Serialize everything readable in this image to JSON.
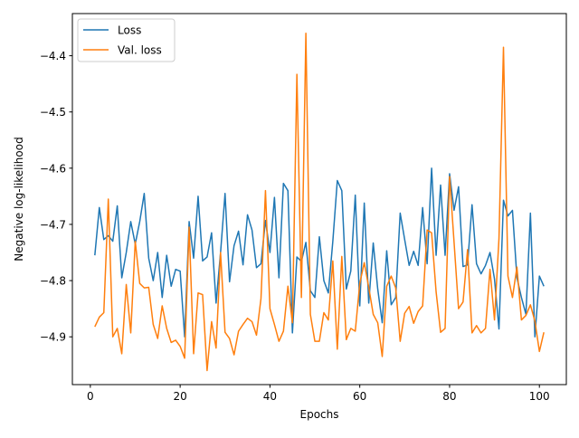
{
  "chart_data": {
    "type": "line",
    "title": "",
    "xlabel": "Epochs",
    "ylabel": "Negative log-likelihood",
    "xlim": [
      -4,
      106
    ],
    "ylim": [
      -4.985,
      -4.325
    ],
    "xticks": [
      0,
      20,
      40,
      60,
      80,
      100
    ],
    "yticks": [
      -4.4,
      -4.5,
      -4.6,
      -4.7,
      -4.8,
      -4.9
    ],
    "grid": false,
    "legend": "top-left",
    "x_start": 1,
    "series": [
      {
        "name": "Loss",
        "color": "#1f77b4",
        "values": [
          -4.755,
          -4.67,
          -4.727,
          -4.72,
          -4.73,
          -4.667,
          -4.795,
          -4.75,
          -4.695,
          -4.735,
          -4.695,
          -4.645,
          -4.76,
          -4.8,
          -4.75,
          -4.83,
          -4.755,
          -4.81,
          -4.78,
          -4.783,
          -4.9,
          -4.695,
          -4.76,
          -4.65,
          -4.765,
          -4.758,
          -4.715,
          -4.84,
          -4.75,
          -4.645,
          -4.802,
          -4.738,
          -4.712,
          -4.772,
          -4.683,
          -4.71,
          -4.777,
          -4.77,
          -4.693,
          -4.75,
          -4.652,
          -4.795,
          -4.627,
          -4.64,
          -4.893,
          -4.758,
          -4.766,
          -4.732,
          -4.818,
          -4.83,
          -4.722,
          -4.8,
          -4.822,
          -4.73,
          -4.622,
          -4.64,
          -4.815,
          -4.783,
          -4.648,
          -4.845,
          -4.662,
          -4.84,
          -4.733,
          -4.815,
          -4.875,
          -4.747,
          -4.843,
          -4.83,
          -4.68,
          -4.727,
          -4.773,
          -4.748,
          -4.773,
          -4.67,
          -4.77,
          -4.6,
          -4.755,
          -4.63,
          -4.755,
          -4.61,
          -4.675,
          -4.633,
          -4.775,
          -4.772,
          -4.665,
          -4.77,
          -4.788,
          -4.773,
          -4.75,
          -4.797,
          -4.886,
          -4.657,
          -4.685,
          -4.675,
          -4.795,
          -4.83,
          -4.86,
          -4.68,
          -4.9,
          -4.792,
          -4.81
        ]
      },
      {
        "name": "Val. loss",
        "color": "#ff7f0e",
        "values": [
          -4.882,
          -4.865,
          -4.857,
          -4.655,
          -4.9,
          -4.885,
          -4.93,
          -4.807,
          -4.893,
          -4.73,
          -4.805,
          -4.813,
          -4.812,
          -4.878,
          -4.903,
          -4.845,
          -4.885,
          -4.91,
          -4.906,
          -4.917,
          -4.938,
          -4.705,
          -4.93,
          -4.822,
          -4.825,
          -4.96,
          -4.873,
          -4.92,
          -4.75,
          -4.892,
          -4.903,
          -4.932,
          -4.89,
          -4.878,
          -4.867,
          -4.873,
          -4.897,
          -4.832,
          -4.64,
          -4.85,
          -4.878,
          -4.908,
          -4.89,
          -4.81,
          -4.875,
          -4.433,
          -4.83,
          -4.36,
          -4.86,
          -4.908,
          -4.908,
          -4.857,
          -4.87,
          -4.765,
          -4.922,
          -4.757,
          -4.905,
          -4.885,
          -4.89,
          -4.805,
          -4.768,
          -4.812,
          -4.86,
          -4.875,
          -4.935,
          -4.81,
          -4.792,
          -4.813,
          -4.908,
          -4.858,
          -4.846,
          -4.876,
          -4.855,
          -4.845,
          -4.71,
          -4.715,
          -4.82,
          -4.892,
          -4.885,
          -4.615,
          -4.732,
          -4.85,
          -4.838,
          -4.745,
          -4.893,
          -4.88,
          -4.893,
          -4.885,
          -4.78,
          -4.87,
          -4.725,
          -4.385,
          -4.792,
          -4.83,
          -4.776,
          -4.87,
          -4.862,
          -4.843,
          -4.872,
          -4.926,
          -4.892
        ]
      }
    ]
  }
}
